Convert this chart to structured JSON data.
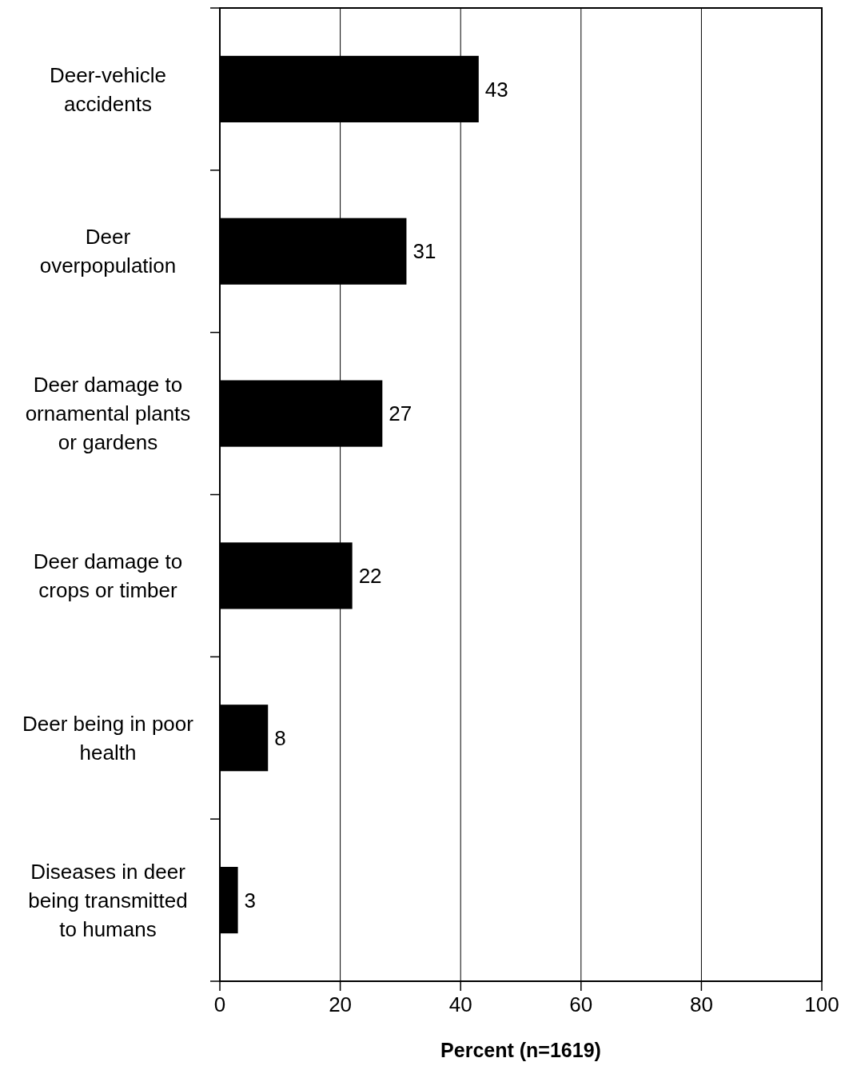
{
  "chart_data": {
    "type": "bar",
    "orientation": "horizontal",
    "xlabel": "Percent (n=1619)",
    "categories": [
      "Deer-vehicle accidents",
      "Deer overpopulation",
      "Deer damage to ornamental plants or gardens",
      "Deer damage to crops or timber",
      "Deer being in poor health",
      "Diseases in deer being transmitted to humans"
    ],
    "values": [
      43,
      31,
      27,
      22,
      8,
      3
    ],
    "color": "#000000",
    "xlim": [
      0,
      100
    ],
    "xticks": [
      0,
      20,
      40,
      60,
      80,
      100
    ],
    "grid": "x",
    "data_labels": true
  }
}
